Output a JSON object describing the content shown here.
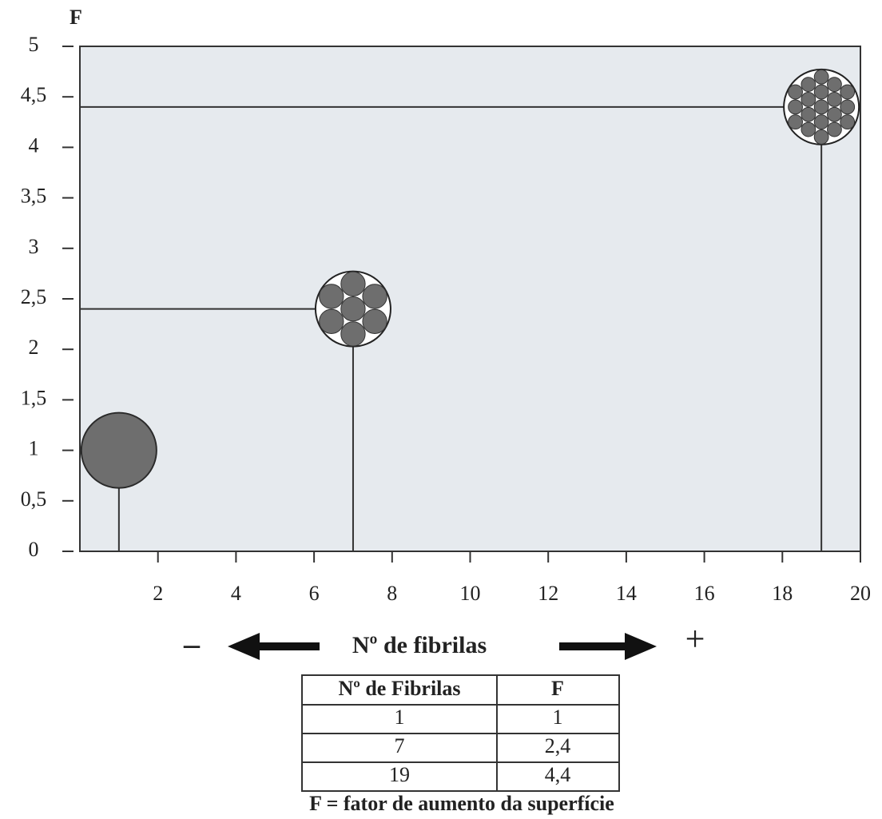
{
  "chart_data": {
    "type": "scatter",
    "y_label": "F",
    "x_label": "Nº de fibrilas",
    "x_label_left": "–",
    "x_label_right": "+",
    "x": [
      1,
      7,
      19
    ],
    "series": [
      {
        "values": [
          1,
          2.4,
          4.4
        ],
        "color": "#6e6e6e"
      }
    ],
    "xlim": [
      0,
      20
    ],
    "xticks": [
      2,
      4,
      6,
      8,
      10,
      12,
      14,
      16,
      18,
      20
    ],
    "ylim": [
      0,
      5
    ],
    "yticks": [
      0,
      {
        "value": 0.5,
        "label": "0,5"
      },
      1,
      {
        "value": 1.5,
        "label": "1,5"
      },
      2,
      {
        "value": 2.5,
        "label": "2,5"
      },
      3,
      {
        "value": 3.5,
        "label": "3,5"
      },
      4,
      {
        "value": 4.5,
        "label": "4,5"
      },
      5
    ]
  },
  "table": {
    "header": [
      "Nº de Fibrilas",
      "F"
    ],
    "rows": [
      [
        "1",
        "1"
      ],
      [
        "7",
        "2,4"
      ],
      [
        "19",
        "4,4"
      ]
    ]
  },
  "caption": "F = fator de aumento da superfície"
}
